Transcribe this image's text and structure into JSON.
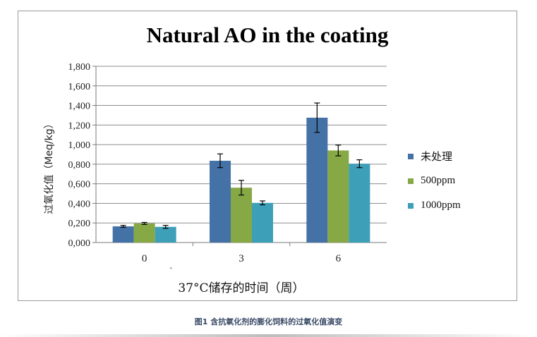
{
  "chart_data": {
    "type": "bar",
    "title": "Natural AO in the coating",
    "ylabel": "过氧化值（Meq/kg）",
    "xlabel": "37°C储存的时间（周）",
    "categories": [
      "0",
      "3",
      "6"
    ],
    "ylim": [
      0,
      1.8
    ],
    "yticks": [
      "0,000",
      "0,200",
      "0,400",
      "0,600",
      "0,800",
      "1,000",
      "1,200",
      "1,400",
      "1,600",
      "1,800"
    ],
    "grid": true,
    "legend_position": "right",
    "series": [
      {
        "name": "未处理",
        "color": "#4472a6",
        "values": [
          0.165,
          0.835,
          1.275
        ],
        "errors": [
          0.01,
          0.07,
          0.15
        ]
      },
      {
        "name": "500ppm",
        "color": "#86a845",
        "values": [
          0.195,
          0.56,
          0.94
        ],
        "errors": [
          0.01,
          0.075,
          0.055
        ]
      },
      {
        "name": "1000ppm",
        "color": "#3d9fb8",
        "values": [
          0.16,
          0.405,
          0.805
        ],
        "errors": [
          0.015,
          0.02,
          0.04
        ]
      }
    ],
    "annotations": [
      "ˋ"
    ]
  },
  "caption": "图1 含抗氧化剂的膨化饲料的过氧化值演变"
}
